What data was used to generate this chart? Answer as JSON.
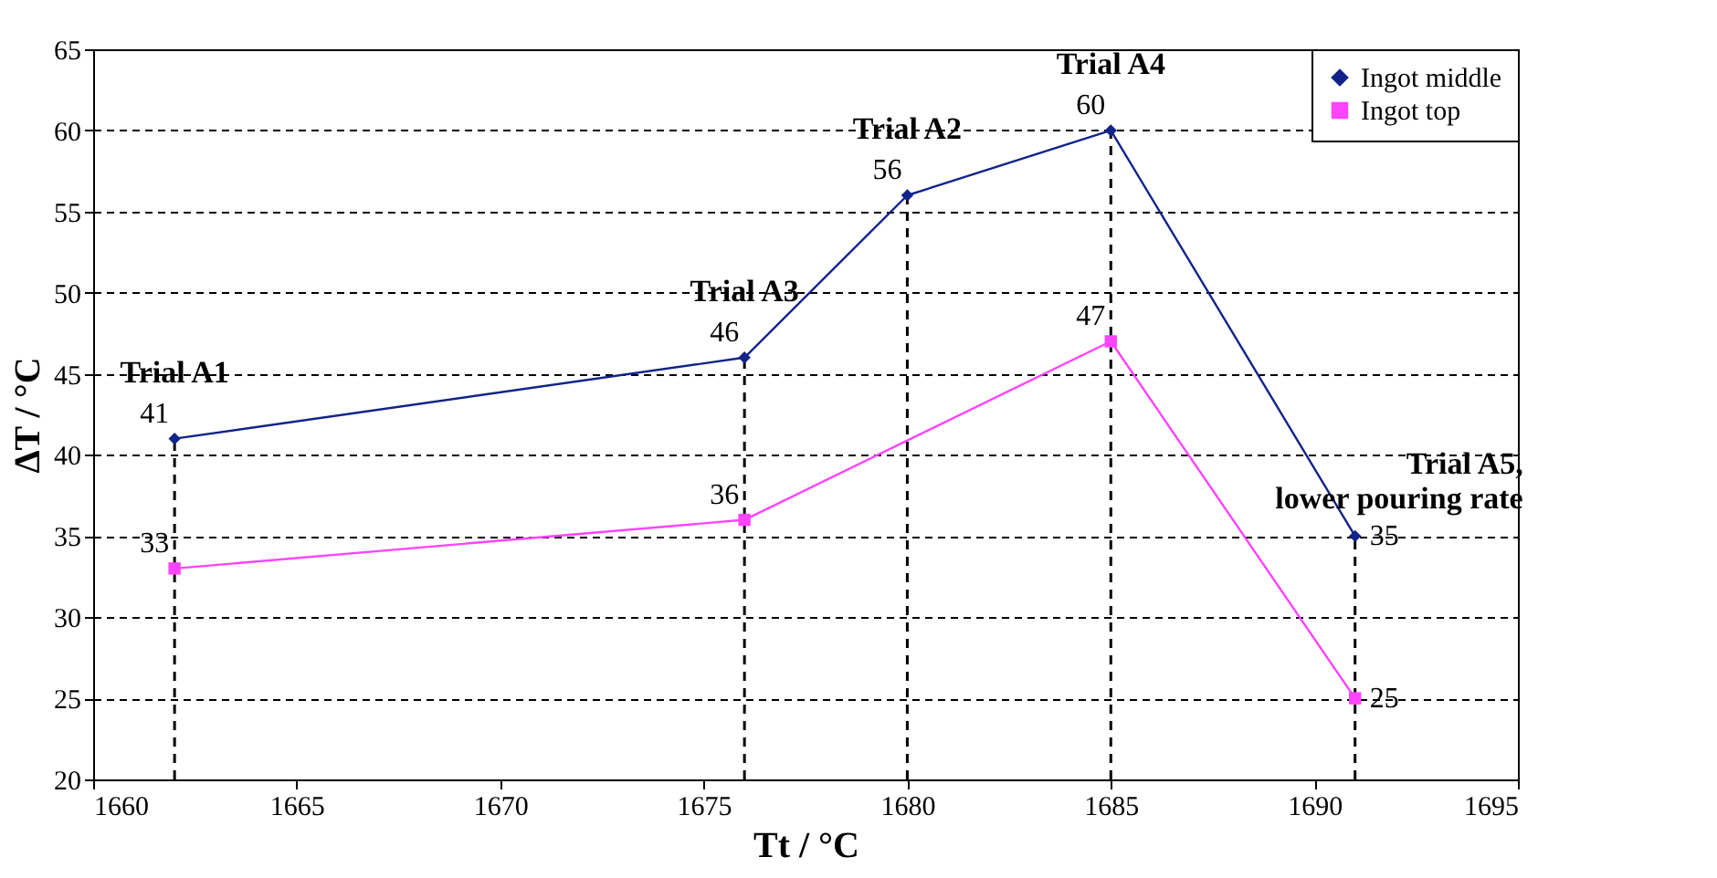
{
  "chart_data": {
    "type": "line",
    "xlabel": "Tt / °C",
    "ylabel": "ΔT / °C",
    "xlim": [
      1660,
      1695
    ],
    "xticks": [
      1660,
      1665,
      1670,
      1675,
      1680,
      1685,
      1690,
      1695
    ],
    "ylim": [
      20,
      65
    ],
    "yticks": [
      20,
      25,
      30,
      35,
      40,
      45,
      50,
      55,
      60,
      65
    ],
    "grid": "y",
    "legend": "top right",
    "data_labels": true,
    "series": [
      {
        "name": "Ingot middle",
        "color": "#12238a",
        "marker": "diamond",
        "x": [
          1662,
          1676,
          1680,
          1685,
          1691
        ],
        "values": [
          41,
          46,
          56,
          60,
          35
        ]
      },
      {
        "name": "Ingot top",
        "color": "#ff44ff",
        "marker": "square",
        "x": [
          1662,
          1676,
          1685,
          1691
        ],
        "values": [
          33,
          36,
          47,
          25
        ]
      }
    ],
    "ref_lines": [
      {
        "axis": "x",
        "value": 1662,
        "line_style": "dashed"
      },
      {
        "axis": "x",
        "value": 1676,
        "line_style": "dashed"
      },
      {
        "axis": "x",
        "value": 1680,
        "line_style": "dashed"
      },
      {
        "axis": "x",
        "value": 1685,
        "line_style": "dashed"
      },
      {
        "axis": "x",
        "value": 1691,
        "line_style": "dashed"
      }
    ],
    "annotations": [
      "Trial A1",
      "Trial A3",
      "Trial A2",
      "Trial A4",
      "Trial A5, lower pouring rate"
    ]
  }
}
